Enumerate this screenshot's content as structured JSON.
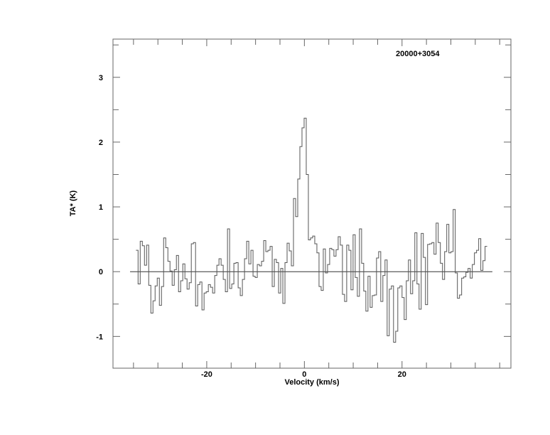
{
  "chart_data": {
    "type": "line",
    "style": "step",
    "title": "20000+3054",
    "xlabel": "Velocity (km/s)",
    "ylabel": "TA* (K)",
    "xlim": [
      -39.2,
      42.3
    ],
    "ylim": [
      -1.49,
      3.59
    ],
    "x_major_ticks": [
      -20,
      0,
      20
    ],
    "x_tick_labels": [
      "-20",
      "0",
      "20"
    ],
    "x_minor_step": 5,
    "y_major_ticks": [
      -1,
      0,
      1,
      2,
      3
    ],
    "y_tick_labels": [
      "-1",
      "0",
      "1",
      "2",
      "3"
    ],
    "y_minor_step": 0.5,
    "grid": false,
    "baseline": 0,
    "baseline_range": [
      -35.7,
      38.5
    ],
    "velocity_start": -34.28,
    "velocity_step": 0.436,
    "values": [
      0.33,
      -0.19,
      0.47,
      0.4,
      0.1,
      0.41,
      -0.21,
      -0.64,
      -0.45,
      -0.22,
      -0.1,
      -0.52,
      -0.23,
      0.52,
      0.37,
      0.16,
      0.01,
      -0.21,
      0.03,
      0.25,
      -0.31,
      -0.14,
      0.12,
      -0.11,
      -0.27,
      -0.17,
      0.43,
      0.45,
      -0.53,
      -0.2,
      -0.16,
      -0.59,
      -0.33,
      -0.31,
      -0.2,
      -0.24,
      -0.33,
      -0.06,
      0.1,
      0.2,
      0.1,
      -0.12,
      -0.31,
      0.66,
      -0.26,
      -0.19,
      0.13,
      0.14,
      -0.25,
      -0.37,
      -0.12,
      0.2,
      0.47,
      0.12,
      0.33,
      -0.07,
      -0.09,
      0.11,
      0.09,
      0.16,
      0.48,
      0.31,
      0.33,
      0.39,
      -0.23,
      0.19,
      0.14,
      -0.33,
      0.05,
      -0.49,
      0.14,
      0.44,
      0.32,
      0.09,
      1.13,
      0.85,
      1.43,
      1.93,
      2.22,
      2.37,
      1.5,
      0.49,
      0.52,
      0.55,
      0.43,
      0.29,
      -0.23,
      -0.29,
      0.35,
      -0.02,
      0.11,
      0.36,
      0.34,
      0.24,
      0.34,
      0.54,
      0.41,
      -0.35,
      -0.46,
      0.41,
      0.33,
      -0.28,
      0.57,
      -0.09,
      -0.38,
      0.66,
      0.13,
      -0.3,
      -0.61,
      -0.07,
      -0.55,
      -0.37,
      -0.36,
      0.21,
      0.31,
      -0.46,
      -0.06,
      0.18,
      -0.99,
      -0.27,
      -0.22,
      -1.09,
      -0.92,
      -0.25,
      -0.22,
      -0.4,
      -0.74,
      -0.14,
      0.18,
      -0.34,
      -0.14,
      0.6,
      -0.19,
      -0.58,
      0.59,
      0.22,
      -0.51,
      0.42,
      0.43,
      0.45,
      0.27,
      0.75,
      0.45,
      0.13,
      -0.12,
      0.31,
      0.73,
      0.29,
      0.31,
      0.96,
      -0.02,
      -0.41,
      -0.36,
      -0.1,
      -0.08,
      -0.01,
      0.05,
      -0.1,
      0.11,
      0.29,
      0.33,
      0.51,
      0.02,
      0.17,
      0.39
    ],
    "colors": {
      "line": "#555555",
      "axes": "#666666",
      "text": "#000000"
    }
  }
}
